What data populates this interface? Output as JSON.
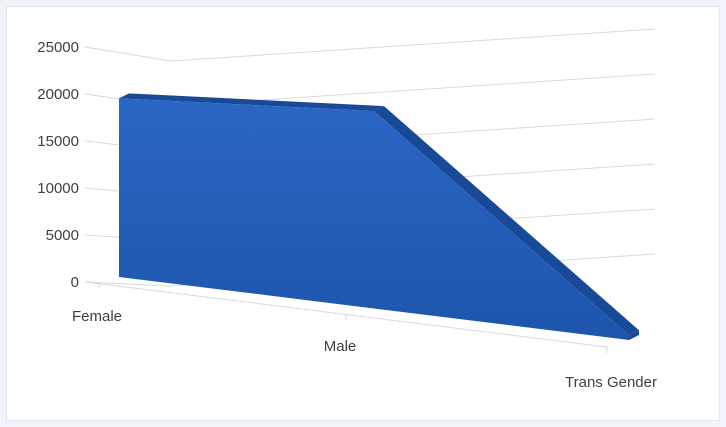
{
  "chart_data": {
    "type": "area",
    "style": "3d",
    "categories": [
      "Female",
      "Male",
      "Trans Gender"
    ],
    "series": [
      {
        "values": [
          19000,
          21000,
          500
        ]
      }
    ],
    "ylim": [
      0,
      25000
    ],
    "yticks": [
      0,
      5000,
      10000,
      15000,
      20000,
      25000
    ],
    "grid": true,
    "legend": "none",
    "colors": {
      "front": "#2a66c4",
      "front_dark": "#1d55ab",
      "top": "#1d4e94",
      "side": "#184a98"
    }
  }
}
